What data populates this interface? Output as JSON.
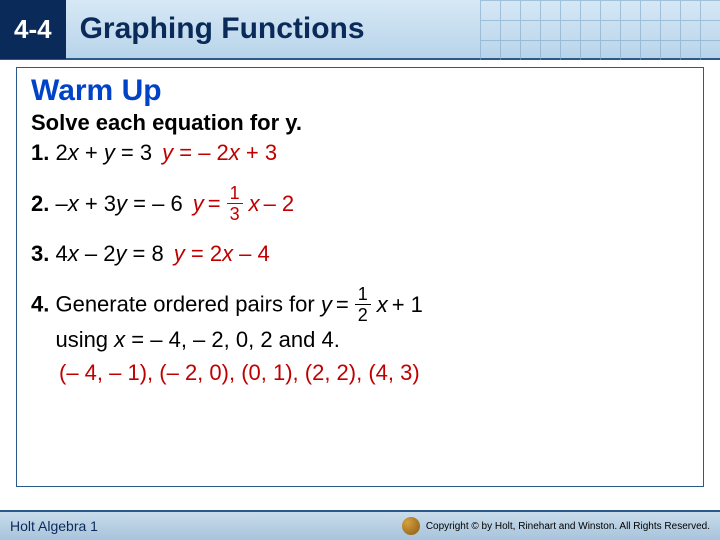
{
  "header": {
    "lesson_number": "4-4",
    "lesson_title": "Graphing Functions",
    "badge_bg": "#0a2a5a",
    "title_color": "#0a2a5a",
    "bar_bg_top": "#d6e8f5",
    "bar_bg_bottom": "#b8d4ea"
  },
  "panel": {
    "warmup_label": "Warm Up",
    "warmup_color": "#0042c8",
    "instruction": "Solve each equation for y.",
    "border_color": "#2a5a8a"
  },
  "q1": {
    "num": "1.",
    "eq_pre": "2",
    "eq_var1": "x",
    "eq_mid": " + ",
    "eq_var2": "y",
    "eq_post": " = 3",
    "ans_var": "y",
    "ans_mid": " = – 2",
    "ans_var2": "x",
    "ans_post": " + 3"
  },
  "q2": {
    "num": "2.",
    "eq_pre": "–",
    "eq_var1": "x",
    "eq_mid": " + 3",
    "eq_var2": "y",
    "eq_post": " = – 6",
    "ans_var": "y",
    "ans_eq": " = ",
    "frac_num": "1",
    "frac_den": "3",
    "ans_var2": "x",
    "ans_post": " – 2"
  },
  "q3": {
    "num": "3.",
    "eq_pre": "4",
    "eq_var1": "x",
    "eq_mid": " – 2",
    "eq_var2": "y",
    "eq_post": " = 8",
    "ans_var": "y",
    "ans_mid": " = 2",
    "ans_var2": "x",
    "ans_post": " – 4"
  },
  "q4": {
    "num": "4.",
    "text_a": " Generate ordered pairs for ",
    "eq_var": "y",
    "eq_eq": " = ",
    "frac_num": "1",
    "frac_den": "2",
    "eq_var2": "x",
    "eq_post": " + 1",
    "text_b": "using ",
    "text_b_var": "x",
    "text_b_post": " = – 4, – 2, 0, 2 and 4.",
    "pairs": "(– 4, – 1), (– 2, 0), (0, 1), (2, 2), (4, 3)"
  },
  "footer": {
    "left": "Holt Algebra 1",
    "right": "Copyright © by Holt, Rinehart and Winston. All Rights Reserved."
  },
  "colors": {
    "answer": "#c00000",
    "text": "#000000"
  }
}
